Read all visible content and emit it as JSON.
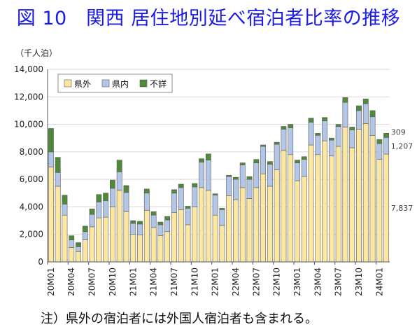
{
  "title": "図 10　関西 居住地別延べ宿泊者比率の推移",
  "unit_label": "（千人泊）",
  "note": "注）県外の宿泊者には外国人宿泊者も含まれる。",
  "chart_data": {
    "type": "bar",
    "stacked": true,
    "ylim": [
      0,
      14000
    ],
    "yticks": [
      0,
      2000,
      4000,
      6000,
      8000,
      10000,
      12000,
      14000
    ],
    "ytick_labels": [
      "0",
      "2,000",
      "4,000",
      "6,000",
      "8,000",
      "10,000",
      "12,000",
      "14,000"
    ],
    "xtick_labels": [
      "20M01",
      "20M04",
      "20M07",
      "20M10",
      "21M01",
      "21M04",
      "21M07",
      "21M10",
      "22M01",
      "22M04",
      "22M07",
      "22M10",
      "23M01",
      "23M04",
      "23M07",
      "23M10",
      "24M01"
    ],
    "legend_position": "top-left",
    "categories": [
      "20M01",
      "20M02",
      "20M03",
      "20M04",
      "20M05",
      "20M06",
      "20M07",
      "20M08",
      "20M09",
      "20M10",
      "20M11",
      "20M12",
      "21M01",
      "21M02",
      "21M03",
      "21M04",
      "21M05",
      "21M06",
      "21M07",
      "21M08",
      "21M09",
      "21M10",
      "21M11",
      "21M12",
      "22M01",
      "22M02",
      "22M03",
      "22M04",
      "22M05",
      "22M06",
      "22M07",
      "22M08",
      "22M09",
      "22M10",
      "22M11",
      "22M12",
      "23M01",
      "23M02",
      "23M03",
      "23M04",
      "23M05",
      "23M06",
      "23M07",
      "23M08",
      "23M09",
      "23M10",
      "23M11",
      "23M12",
      "24M01",
      "24M02"
    ],
    "series": [
      {
        "name": "県外",
        "color": "#fce7a2",
        "values": [
          6900,
          5500,
          3400,
          1050,
          750,
          1600,
          2550,
          3200,
          3250,
          4000,
          5200,
          3650,
          2000,
          1950,
          3750,
          2500,
          1900,
          2200,
          3600,
          3800,
          2700,
          4000,
          5400,
          5200,
          3400,
          2650,
          4800,
          4500,
          5400,
          4600,
          5400,
          6400,
          5500,
          6700,
          8100,
          7800,
          5900,
          6200,
          8500,
          7800,
          8800,
          7700,
          8400,
          9800,
          8300,
          9650,
          10050,
          9200,
          7450,
          7837
        ]
      },
      {
        "name": "県内",
        "color": "#b3c6e7",
        "values": [
          1100,
          1000,
          800,
          550,
          350,
          600,
          900,
          1150,
          1200,
          1350,
          1350,
          1400,
          800,
          800,
          1250,
          900,
          800,
          850,
          1400,
          1600,
          1200,
          1450,
          1850,
          2200,
          1450,
          1150,
          1400,
          1500,
          1650,
          1400,
          1800,
          2000,
          1600,
          1850,
          1550,
          1950,
          1300,
          1250,
          1650,
          1400,
          1450,
          1150,
          1450,
          1800,
          1300,
          1350,
          1450,
          1350,
          1150,
          1207
        ]
      },
      {
        "name": "不詳",
        "color": "#4f8a3a",
        "values": [
          1700,
          1100,
          650,
          300,
          300,
          400,
          400,
          550,
          550,
          600,
          850,
          500,
          200,
          200,
          300,
          250,
          200,
          250,
          250,
          250,
          150,
          250,
          250,
          450,
          100,
          100,
          100,
          150,
          150,
          200,
          250,
          100,
          200,
          150,
          200,
          250,
          200,
          200,
          300,
          150,
          250,
          150,
          150,
          350,
          200,
          350,
          350,
          450,
          300,
          309
        ]
      }
    ],
    "data_labels": [
      {
        "series": "不詳",
        "category": "24M02",
        "text": "309"
      },
      {
        "series": "県内",
        "category": "24M02",
        "text": "1,207"
      },
      {
        "series": "県外",
        "category": "24M02",
        "text": "7,837"
      }
    ]
  }
}
